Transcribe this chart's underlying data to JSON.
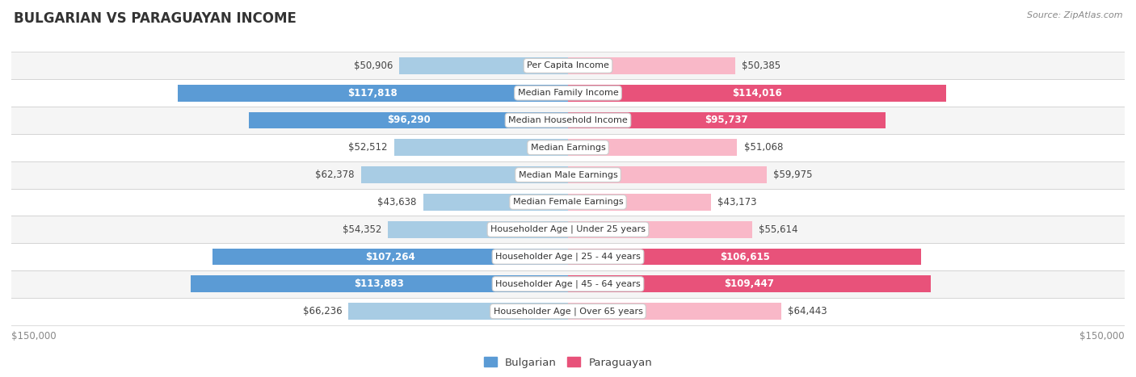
{
  "title": "BULGARIAN VS PARAGUAYAN INCOME",
  "source": "Source: ZipAtlas.com",
  "categories": [
    "Per Capita Income",
    "Median Family Income",
    "Median Household Income",
    "Median Earnings",
    "Median Male Earnings",
    "Median Female Earnings",
    "Householder Age | Under 25 years",
    "Householder Age | 25 - 44 years",
    "Householder Age | 45 - 64 years",
    "Householder Age | Over 65 years"
  ],
  "bulgarian_values": [
    50906,
    117818,
    96290,
    52512,
    62378,
    43638,
    54352,
    107264,
    113883,
    66236
  ],
  "paraguayan_values": [
    50385,
    114016,
    95737,
    51068,
    59975,
    43173,
    55614,
    106615,
    109447,
    64443
  ],
  "bulgarian_labels": [
    "$50,906",
    "$117,818",
    "$96,290",
    "$52,512",
    "$62,378",
    "$43,638",
    "$54,352",
    "$107,264",
    "$113,883",
    "$66,236"
  ],
  "paraguayan_labels": [
    "$50,385",
    "$114,016",
    "$95,737",
    "$51,068",
    "$59,975",
    "$43,173",
    "$55,614",
    "$106,615",
    "$109,447",
    "$64,443"
  ],
  "bulgarian_color_light": "#a8cce4",
  "bulgarian_color_dark": "#5b9bd5",
  "paraguayan_color_light": "#f9b8c8",
  "paraguayan_color_dark": "#e8527a",
  "bar_height": 0.62,
  "max_value": 150000,
  "bg_color": "#ffffff",
  "row_colors": [
    "#f5f5f5",
    "#ffffff"
  ],
  "label_fontsize": 8.5,
  "title_fontsize": 12,
  "inside_threshold": 75000,
  "text_color_inside": "#ffffff",
  "text_color_outside": "#555555"
}
